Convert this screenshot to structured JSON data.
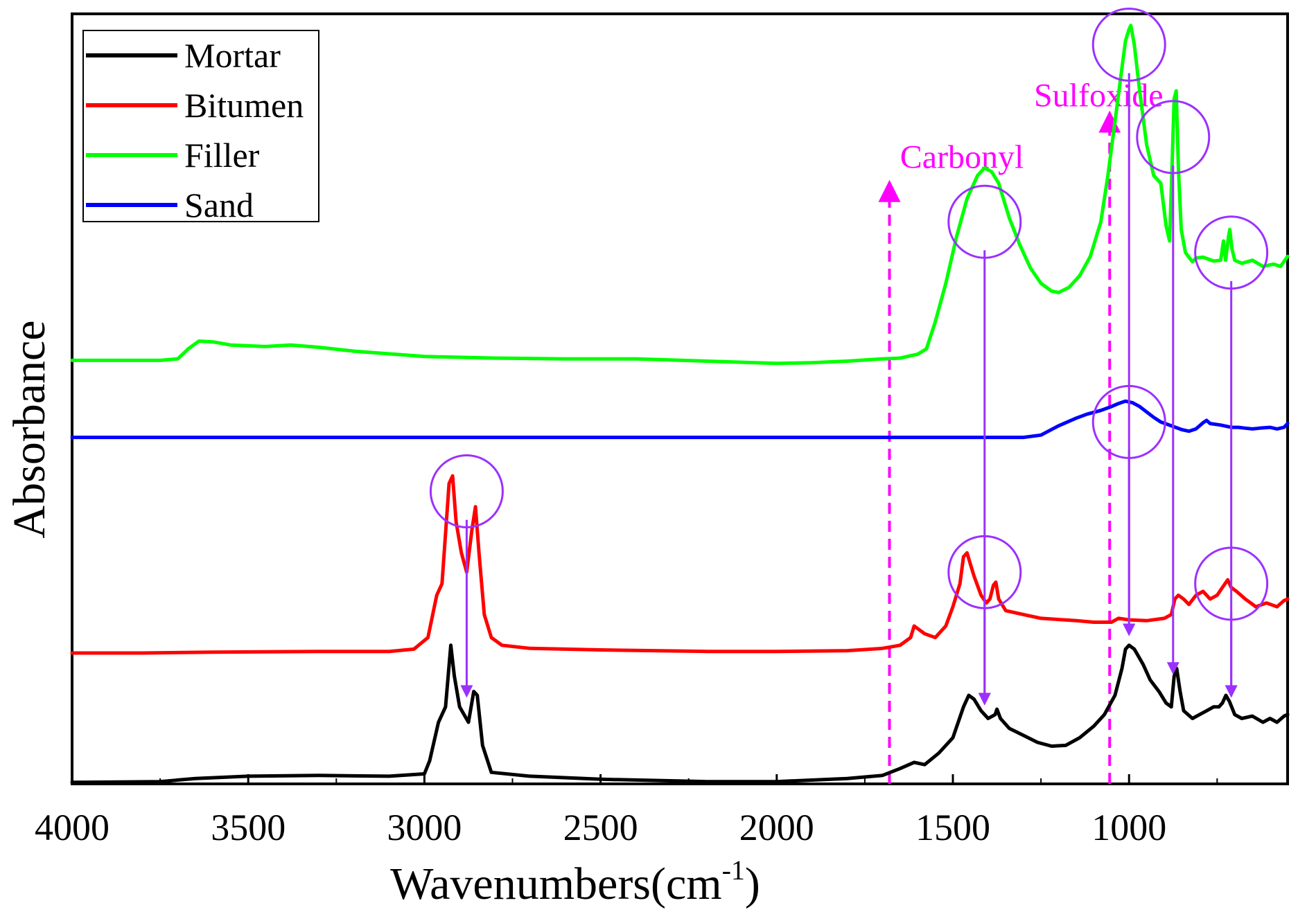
{
  "chart_data": {
    "type": "line",
    "title": "",
    "xlabel": "Wavenumbers(cm",
    "xlabel_sup": "-1",
    "xlabel_close": ")",
    "ylabel": "Absorbance",
    "xlim": [
      4000,
      550
    ],
    "x_reversed": true,
    "ylim": [
      0,
      1
    ],
    "y_ticks_shown": false,
    "grid": false,
    "x_ticks": [
      4000,
      3500,
      3000,
      2500,
      2000,
      1500,
      1000
    ],
    "x_tick_labels": [
      "4000",
      "3500",
      "3000",
      "2500",
      "2000",
      "1500",
      "1000"
    ],
    "legend_position": "top-left",
    "series": [
      {
        "name": "Mortar",
        "color": "#000000",
        "points": [
          [
            4000,
            0.002
          ],
          [
            3750,
            0.003
          ],
          [
            3650,
            0.007
          ],
          [
            3500,
            0.01
          ],
          [
            3300,
            0.011
          ],
          [
            3100,
            0.01
          ],
          [
            3000,
            0.013
          ],
          [
            2985,
            0.03
          ],
          [
            2960,
            0.08
          ],
          [
            2940,
            0.1
          ],
          [
            2925,
            0.18
          ],
          [
            2915,
            0.14
          ],
          [
            2900,
            0.1
          ],
          [
            2875,
            0.08
          ],
          [
            2860,
            0.12
          ],
          [
            2850,
            0.115
          ],
          [
            2835,
            0.05
          ],
          [
            2810,
            0.015
          ],
          [
            2700,
            0.01
          ],
          [
            2500,
            0.006
          ],
          [
            2200,
            0.003
          ],
          [
            2000,
            0.003
          ],
          [
            1800,
            0.007
          ],
          [
            1700,
            0.011
          ],
          [
            1650,
            0.02
          ],
          [
            1610,
            0.028
          ],
          [
            1580,
            0.025
          ],
          [
            1540,
            0.04
          ],
          [
            1500,
            0.06
          ],
          [
            1470,
            0.1
          ],
          [
            1455,
            0.115
          ],
          [
            1440,
            0.11
          ],
          [
            1420,
            0.095
          ],
          [
            1400,
            0.085
          ],
          [
            1380,
            0.09
          ],
          [
            1375,
            0.097
          ],
          [
            1365,
            0.085
          ],
          [
            1340,
            0.072
          ],
          [
            1300,
            0.063
          ],
          [
            1260,
            0.054
          ],
          [
            1220,
            0.049
          ],
          [
            1180,
            0.05
          ],
          [
            1140,
            0.06
          ],
          [
            1100,
            0.075
          ],
          [
            1070,
            0.09
          ],
          [
            1040,
            0.115
          ],
          [
            1020,
            0.15
          ],
          [
            1010,
            0.175
          ],
          [
            1000,
            0.18
          ],
          [
            985,
            0.175
          ],
          [
            960,
            0.155
          ],
          [
            940,
            0.135
          ],
          [
            915,
            0.12
          ],
          [
            895,
            0.105
          ],
          [
            880,
            0.1
          ],
          [
            872,
            0.14
          ],
          [
            865,
            0.15
          ],
          [
            855,
            0.12
          ],
          [
            845,
            0.095
          ],
          [
            820,
            0.085
          ],
          [
            800,
            0.09
          ],
          [
            780,
            0.095
          ],
          [
            760,
            0.1
          ],
          [
            745,
            0.1
          ],
          [
            735,
            0.105
          ],
          [
            725,
            0.115
          ],
          [
            715,
            0.107
          ],
          [
            700,
            0.09
          ],
          [
            680,
            0.085
          ],
          [
            650,
            0.088
          ],
          [
            620,
            0.08
          ],
          [
            600,
            0.085
          ],
          [
            580,
            0.08
          ],
          [
            560,
            0.088
          ],
          [
            550,
            0.09
          ]
        ]
      },
      {
        "name": "Bitumen",
        "color": "#ff0000",
        "points": [
          [
            4000,
            0.17
          ],
          [
            3800,
            0.17
          ],
          [
            3600,
            0.171
          ],
          [
            3300,
            0.172
          ],
          [
            3100,
            0.172
          ],
          [
            3030,
            0.175
          ],
          [
            2990,
            0.19
          ],
          [
            2965,
            0.245
          ],
          [
            2950,
            0.26
          ],
          [
            2930,
            0.39
          ],
          [
            2920,
            0.4
          ],
          [
            2910,
            0.34
          ],
          [
            2895,
            0.3
          ],
          [
            2880,
            0.275
          ],
          [
            2865,
            0.33
          ],
          [
            2855,
            0.36
          ],
          [
            2845,
            0.3
          ],
          [
            2830,
            0.22
          ],
          [
            2810,
            0.19
          ],
          [
            2780,
            0.18
          ],
          [
            2700,
            0.176
          ],
          [
            2500,
            0.174
          ],
          [
            2200,
            0.172
          ],
          [
            2000,
            0.172
          ],
          [
            1800,
            0.173
          ],
          [
            1700,
            0.176
          ],
          [
            1650,
            0.18
          ],
          [
            1620,
            0.19
          ],
          [
            1610,
            0.205
          ],
          [
            1595,
            0.2
          ],
          [
            1580,
            0.195
          ],
          [
            1550,
            0.19
          ],
          [
            1520,
            0.205
          ],
          [
            1500,
            0.23
          ],
          [
            1480,
            0.26
          ],
          [
            1470,
            0.295
          ],
          [
            1460,
            0.3
          ],
          [
            1450,
            0.285
          ],
          [
            1440,
            0.27
          ],
          [
            1420,
            0.245
          ],
          [
            1405,
            0.235
          ],
          [
            1395,
            0.24
          ],
          [
            1385,
            0.258
          ],
          [
            1378,
            0.262
          ],
          [
            1370,
            0.24
          ],
          [
            1350,
            0.225
          ],
          [
            1300,
            0.22
          ],
          [
            1250,
            0.215
          ],
          [
            1150,
            0.212
          ],
          [
            1100,
            0.21
          ],
          [
            1050,
            0.21
          ],
          [
            1030,
            0.215
          ],
          [
            1000,
            0.213
          ],
          [
            950,
            0.212
          ],
          [
            900,
            0.215
          ],
          [
            880,
            0.22
          ],
          [
            870,
            0.24
          ],
          [
            860,
            0.245
          ],
          [
            845,
            0.24
          ],
          [
            830,
            0.233
          ],
          [
            810,
            0.245
          ],
          [
            790,
            0.25
          ],
          [
            770,
            0.24
          ],
          [
            750,
            0.245
          ],
          [
            735,
            0.255
          ],
          [
            720,
            0.265
          ],
          [
            710,
            0.255
          ],
          [
            695,
            0.25
          ],
          [
            670,
            0.24
          ],
          [
            640,
            0.23
          ],
          [
            610,
            0.235
          ],
          [
            580,
            0.23
          ],
          [
            560,
            0.238
          ],
          [
            550,
            0.24
          ]
        ]
      },
      {
        "name": "Filler",
        "color": "#00ff00",
        "points": [
          [
            4000,
            0.55
          ],
          [
            3750,
            0.55
          ],
          [
            3700,
            0.552
          ],
          [
            3670,
            0.565
          ],
          [
            3640,
            0.575
          ],
          [
            3600,
            0.574
          ],
          [
            3550,
            0.57
          ],
          [
            3450,
            0.568
          ],
          [
            3380,
            0.57
          ],
          [
            3300,
            0.567
          ],
          [
            3200,
            0.562
          ],
          [
            3000,
            0.555
          ],
          [
            2800,
            0.553
          ],
          [
            2600,
            0.552
          ],
          [
            2400,
            0.552
          ],
          [
            2200,
            0.549
          ],
          [
            2000,
            0.546
          ],
          [
            1900,
            0.547
          ],
          [
            1800,
            0.549
          ],
          [
            1700,
            0.552
          ],
          [
            1650,
            0.553
          ],
          [
            1600,
            0.558
          ],
          [
            1575,
            0.565
          ],
          [
            1550,
            0.6
          ],
          [
            1520,
            0.65
          ],
          [
            1490,
            0.71
          ],
          [
            1460,
            0.76
          ],
          [
            1430,
            0.79
          ],
          [
            1410,
            0.8
          ],
          [
            1390,
            0.795
          ],
          [
            1370,
            0.78
          ],
          [
            1340,
            0.735
          ],
          [
            1310,
            0.7
          ],
          [
            1280,
            0.67
          ],
          [
            1250,
            0.65
          ],
          [
            1220,
            0.64
          ],
          [
            1200,
            0.638
          ],
          [
            1170,
            0.645
          ],
          [
            1140,
            0.66
          ],
          [
            1110,
            0.685
          ],
          [
            1080,
            0.73
          ],
          [
            1060,
            0.79
          ],
          [
            1040,
            0.86
          ],
          [
            1020,
            0.93
          ],
          [
            1010,
            0.965
          ],
          [
            1000,
            0.98
          ],
          [
            995,
            0.985
          ],
          [
            985,
            0.96
          ],
          [
            970,
            0.9
          ],
          [
            950,
            0.83
          ],
          [
            930,
            0.79
          ],
          [
            910,
            0.78
          ],
          [
            895,
            0.725
          ],
          [
            885,
            0.705
          ],
          [
            878,
            0.8
          ],
          [
            872,
            0.89
          ],
          [
            866,
            0.9
          ],
          [
            860,
            0.8
          ],
          [
            852,
            0.72
          ],
          [
            840,
            0.69
          ],
          [
            820,
            0.678
          ],
          [
            810,
            0.683
          ],
          [
            790,
            0.684
          ],
          [
            760,
            0.679
          ],
          [
            740,
            0.68
          ],
          [
            732,
            0.705
          ],
          [
            726,
            0.68
          ],
          [
            718,
            0.71
          ],
          [
            714,
            0.72
          ],
          [
            708,
            0.695
          ],
          [
            700,
            0.68
          ],
          [
            680,
            0.676
          ],
          [
            650,
            0.68
          ],
          [
            620,
            0.672
          ],
          [
            590,
            0.675
          ],
          [
            570,
            0.672
          ],
          [
            550,
            0.685
          ]
        ]
      },
      {
        "name": "Sand",
        "color": "#0000ff",
        "points": [
          [
            4000,
            0.45
          ],
          [
            3500,
            0.45
          ],
          [
            3000,
            0.45
          ],
          [
            2500,
            0.45
          ],
          [
            2000,
            0.45
          ],
          [
            1500,
            0.45
          ],
          [
            1300,
            0.45
          ],
          [
            1250,
            0.453
          ],
          [
            1200,
            0.465
          ],
          [
            1150,
            0.475
          ],
          [
            1120,
            0.48
          ],
          [
            1080,
            0.485
          ],
          [
            1050,
            0.49
          ],
          [
            1030,
            0.494
          ],
          [
            1010,
            0.497
          ],
          [
            990,
            0.495
          ],
          [
            970,
            0.49
          ],
          [
            950,
            0.483
          ],
          [
            930,
            0.476
          ],
          [
            910,
            0.47
          ],
          [
            880,
            0.465
          ],
          [
            850,
            0.46
          ],
          [
            830,
            0.458
          ],
          [
            810,
            0.461
          ],
          [
            790,
            0.469
          ],
          [
            780,
            0.472
          ],
          [
            770,
            0.468
          ],
          [
            740,
            0.466
          ],
          [
            710,
            0.463
          ],
          [
            690,
            0.463
          ],
          [
            670,
            0.462
          ],
          [
            650,
            0.461
          ],
          [
            630,
            0.462
          ],
          [
            600,
            0.463
          ],
          [
            580,
            0.461
          ],
          [
            560,
            0.463
          ],
          [
            550,
            0.468
          ]
        ]
      }
    ],
    "annotations": [
      {
        "label": "Carbonyl",
        "x": 1680,
        "text_x": 1650,
        "text_y": 0.8,
        "arrow_from": 0.0,
        "arrow_to": 0.77,
        "color": "#ff00ff"
      },
      {
        "label": "Sulfoxide",
        "x": 1055,
        "text_x": 1270,
        "text_y": 0.88,
        "arrow_from": 0.0,
        "arrow_to": 0.86,
        "color": "#ff00ff"
      }
    ],
    "highlight_circles": [
      {
        "x": 2880,
        "y": 0.38
      },
      {
        "x": 1410,
        "y": 0.73
      },
      {
        "x": 1000,
        "y": 0.96
      },
      {
        "x": 875,
        "y": 0.84
      },
      {
        "x": 710,
        "y": 0.69
      },
      {
        "x": 1410,
        "y": 0.275
      },
      {
        "x": 1000,
        "y": 0.47
      },
      {
        "x": 710,
        "y": 0.26
      }
    ],
    "highlight_arrows": [
      {
        "x": 2880,
        "y_from": 0.343,
        "y_to": 0.12
      },
      {
        "x": 1410,
        "y_from": 0.693,
        "y_to": 0.11
      },
      {
        "x": 1410,
        "y_from": 0.238,
        "y_to": 0.11
      },
      {
        "x": 1000,
        "y_from": 0.923,
        "y_to": 0.2
      },
      {
        "x": 1000,
        "y_from": 0.433,
        "y_to": 0.2
      },
      {
        "x": 875,
        "y_from": 0.803,
        "y_to": 0.15
      },
      {
        "x": 710,
        "y_from": 0.653,
        "y_to": 0.12
      },
      {
        "x": 710,
        "y_from": 0.223,
        "y_to": 0.12
      }
    ],
    "highlight_color": "#9b30ff"
  }
}
